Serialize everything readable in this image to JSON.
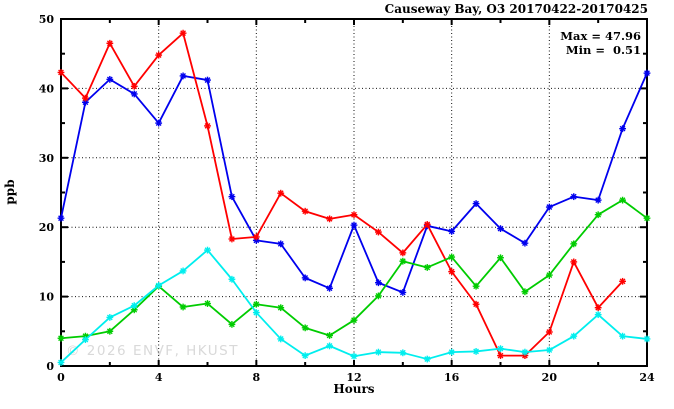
{
  "title": "Causeway Bay, O3 20170422-20170425",
  "annotation": {
    "max_label": "Max = 47.96",
    "min_label": "Min =  0.51"
  },
  "watermark": "© 2026 ENVF, HKUST",
  "chart_data": {
    "type": "line",
    "title": "Causeway Bay, O3 20170422-20170425",
    "xlabel": "Hours",
    "ylabel": "ppb",
    "xlim": [
      0,
      24
    ],
    "ylim": [
      0,
      50
    ],
    "x_ticks_major": [
      0,
      4,
      8,
      12,
      16,
      20,
      24
    ],
    "x_tick_minor_step": 2,
    "y_ticks_major": [
      0,
      10,
      20,
      30,
      40,
      50
    ],
    "y_tick_minor_step": 5,
    "grid_x": [
      4,
      8,
      12,
      16,
      20
    ],
    "grid_y": [
      10,
      20,
      30,
      40
    ],
    "grid_style": "dotted",
    "legend": "none",
    "max": 47.96,
    "min": 0.51,
    "x": [
      0,
      1,
      2,
      3,
      4,
      5,
      6,
      7,
      8,
      9,
      10,
      11,
      12,
      13,
      14,
      15,
      16,
      17,
      18,
      19,
      20,
      21,
      22,
      23,
      24
    ],
    "series": [
      {
        "name": "blue",
        "color": "#0000ee",
        "values": [
          21.3,
          38.0,
          41.3,
          39.2,
          35.0,
          41.8,
          41.2,
          24.4,
          18.1,
          17.6,
          12.7,
          11.2,
          20.3,
          12.0,
          10.6,
          20.2,
          19.4,
          23.4,
          19.8,
          17.7,
          22.9,
          24.4,
          23.9,
          34.2,
          42.2
        ]
      },
      {
        "name": "red",
        "color": "#ff0000",
        "values": [
          42.3,
          38.6,
          46.5,
          40.3,
          44.8,
          47.96,
          34.6,
          18.3,
          18.6,
          24.9,
          22.3,
          21.2,
          21.8,
          19.3,
          16.3,
          20.4,
          13.6,
          8.9,
          1.5,
          1.5,
          4.9,
          15.0,
          8.4,
          12.2,
          null
        ]
      },
      {
        "name": "green",
        "color": "#00cc00",
        "values": [
          4.0,
          4.3,
          5.0,
          8.1,
          11.5,
          8.5,
          9.0,
          6.0,
          8.9,
          8.4,
          5.5,
          4.4,
          6.6,
          10.1,
          15.1,
          14.2,
          15.7,
          11.5,
          15.6,
          10.7,
          13.1,
          17.6,
          21.8,
          23.9,
          21.3
        ]
      },
      {
        "name": "cyan",
        "color": "#00eeee",
        "values": [
          0.51,
          3.8,
          7.0,
          8.7,
          11.6,
          13.7,
          16.7,
          12.5,
          7.7,
          3.9,
          1.5,
          2.9,
          1.4,
          2.0,
          1.9,
          1.0,
          2.0,
          2.1,
          2.5,
          2.0,
          2.3,
          4.3,
          7.4,
          4.3,
          3.9
        ]
      }
    ]
  }
}
